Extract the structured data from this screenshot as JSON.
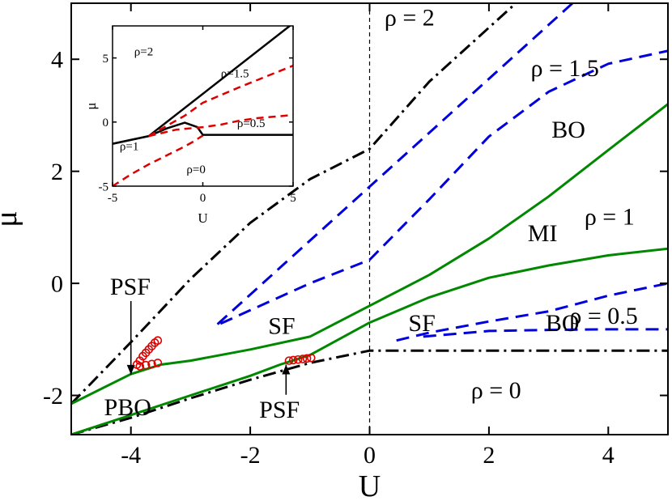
{
  "chart_data": [
    {
      "type": "line",
      "xlabel": "U",
      "ylabel": "μ",
      "xlim": [
        -5,
        5
      ],
      "ylim": [
        -2.7,
        5.0
      ],
      "xticks": [
        -4,
        -2,
        0,
        2,
        4
      ],
      "xtick_labels": [
        "-4",
        "-2",
        "0",
        "2",
        "4"
      ],
      "yticks": [
        -2,
        0,
        2,
        4
      ],
      "ytick_labels": [
        "-2",
        "0",
        "2",
        "4"
      ],
      "grid": false,
      "series": [
        {
          "style": "dash-dot",
          "color": "#000000",
          "x": [
            -5,
            -4,
            -3,
            -2,
            -1,
            0,
            1,
            2.45
          ],
          "y": [
            -2.15,
            -1.05,
            0.08,
            1.08,
            1.86,
            2.4,
            3.6,
            5.0
          ]
        },
        {
          "style": "dash-dot",
          "color": "#000000",
          "x": [
            -5,
            -4,
            -3,
            -2,
            -1,
            0,
            1,
            2,
            3,
            4,
            5
          ],
          "y": [
            -2.7,
            -2.4,
            -2.05,
            -1.72,
            -1.42,
            -1.2,
            -1.2,
            -1.2,
            -1.2,
            -1.2,
            -1.2
          ]
        },
        {
          "style": "dashed",
          "color": "#0000dd",
          "x": [
            -2.55,
            3.4
          ],
          "y": [
            -0.73,
            5.0
          ]
        },
        {
          "style": "dashed",
          "color": "#0000dd",
          "x": [
            -2.5,
            -1,
            0,
            1,
            2,
            3,
            4,
            5
          ],
          "y": [
            -0.72,
            0.0,
            0.42,
            1.5,
            2.62,
            3.42,
            3.92,
            4.15
          ]
        },
        {
          "style": "dashed",
          "color": "#0000dd",
          "x": [
            0.45,
            1,
            2,
            3,
            4,
            5
          ],
          "y": [
            -1.02,
            -0.88,
            -0.68,
            -0.5,
            -0.22,
            0.0
          ]
        },
        {
          "style": "dashed",
          "color": "#0000dd",
          "x": [
            0.9,
            2,
            3,
            4,
            5
          ],
          "y": [
            -0.95,
            -0.85,
            -0.83,
            -0.82,
            -0.82
          ]
        },
        {
          "style": "solid",
          "color": "#008800",
          "x": [
            -5,
            -4,
            -3.5,
            -3,
            -2,
            -1,
            0,
            1,
            2,
            3,
            4,
            5
          ],
          "y": [
            -2.15,
            -1.62,
            -1.45,
            -1.38,
            -1.18,
            -0.95,
            -0.4,
            0.15,
            0.8,
            1.55,
            2.38,
            3.2
          ]
        },
        {
          "style": "solid",
          "color": "#008800",
          "x": [
            -5,
            -4,
            -3,
            -2,
            -1.5,
            -1,
            0,
            1,
            2,
            3,
            4,
            5
          ],
          "y": [
            -2.7,
            -2.35,
            -2.0,
            -1.65,
            -1.45,
            -1.28,
            -0.7,
            -0.25,
            0.1,
            0.32,
            0.5,
            0.62
          ]
        },
        {
          "style": "markers",
          "color": "#dd0000",
          "marker": "open-circle",
          "x": [
            -3.9,
            -3.85,
            -3.8,
            -3.75,
            -3.7,
            -3.65,
            -3.6,
            -3.55,
            -3.85,
            -3.75,
            -3.65,
            -3.55,
            -1.35,
            -1.28,
            -1.2,
            -1.12,
            -1.05,
            -0.98
          ],
          "y": [
            -1.45,
            -1.38,
            -1.3,
            -1.24,
            -1.18,
            -1.12,
            -1.06,
            -1.02,
            -1.48,
            -1.46,
            -1.44,
            -1.42,
            -1.38,
            -1.37,
            -1.36,
            -1.35,
            -1.34,
            -1.33
          ]
        }
      ],
      "reference_lines": [
        {
          "orientation": "vertical",
          "x": 0,
          "style": "dashed",
          "color": "#000000"
        }
      ],
      "annotations": [
        {
          "text": "ρ = 2",
          "x": 0.25,
          "y": 4.6
        },
        {
          "text": "ρ = 1.5",
          "x": 2.7,
          "y": 3.7
        },
        {
          "text": "BO",
          "x": 3.05,
          "y": 2.6
        },
        {
          "text": "MI",
          "x": 2.65,
          "y": 0.75
        },
        {
          "text": "ρ = 1",
          "x": 3.6,
          "y": 1.05
        },
        {
          "text": "SF",
          "x": -1.7,
          "y": -0.9
        },
        {
          "text": "SF",
          "x": 0.65,
          "y": -0.85
        },
        {
          "text": "BO",
          "x": 2.95,
          "y": -0.85
        },
        {
          "text": "ρ = 0.5",
          "x": 3.35,
          "y": -0.72
        },
        {
          "text": "ρ = 0",
          "x": 1.7,
          "y": -2.05
        },
        {
          "text": "PBO",
          "x": -4.45,
          "y": -2.35
        },
        {
          "text": "PSF",
          "x": -4.35,
          "y": -0.2,
          "arrow_to": [
            -4.0,
            -1.63
          ]
        },
        {
          "text": "PSF",
          "x": -1.85,
          "y": -2.4,
          "arrow_to": [
            -1.4,
            -1.45
          ]
        }
      ]
    },
    {
      "type": "line",
      "xlabel": "U",
      "ylabel": "μ",
      "xlim": [
        -5,
        5
      ],
      "ylim": [
        -5,
        7.5
      ],
      "xticks": [
        -5,
        0,
        5
      ],
      "xtick_labels": [
        "-5",
        "0",
        "5"
      ],
      "yticks": [
        -5,
        0,
        5
      ],
      "ytick_labels": [
        "-5",
        "0",
        "5"
      ],
      "series": [
        {
          "style": "solid",
          "color": "#000000",
          "x": [
            -5,
            -3,
            5
          ],
          "y": [
            -1.7,
            -1.1,
            7.7
          ]
        },
        {
          "style": "solid",
          "color": "#000000",
          "x": [
            -5,
            -3,
            -2,
            -1,
            -0.3,
            0,
            5
          ],
          "y": [
            -1.7,
            -1.1,
            -0.5,
            -0.05,
            -0.4,
            -1.0,
            -1.0
          ]
        },
        {
          "style": "dashed",
          "color": "#dd0000",
          "x": [
            -3,
            -1,
            0,
            2,
            5
          ],
          "y": [
            -1.1,
            0.5,
            1.5,
            2.7,
            4.4
          ]
        },
        {
          "style": "dashed",
          "color": "#dd0000",
          "x": [
            -3,
            -1.5,
            0,
            1,
            2,
            3,
            5
          ],
          "y": [
            -1.1,
            -0.6,
            -0.4,
            -0.2,
            0.1,
            0.3,
            0.55
          ]
        },
        {
          "style": "dashed",
          "color": "#dd0000",
          "x": [
            -5,
            -4,
            -3,
            -2,
            -1,
            -0.5,
            0
          ],
          "y": [
            -5,
            -4.1,
            -3.3,
            -2.6,
            -1.9,
            -1.5,
            -1.05
          ]
        }
      ],
      "annotations": [
        {
          "text": "ρ=2",
          "x": -3.8,
          "y": 5.2
        },
        {
          "text": "ρ=1.5",
          "x": 1.0,
          "y": 3.5
        },
        {
          "text": "ρ=0.5",
          "x": 1.9,
          "y": -0.4
        },
        {
          "text": "ρ=1",
          "x": -4.6,
          "y": -2.2
        },
        {
          "text": "ρ=0",
          "x": -0.9,
          "y": -4.0
        }
      ]
    }
  ]
}
